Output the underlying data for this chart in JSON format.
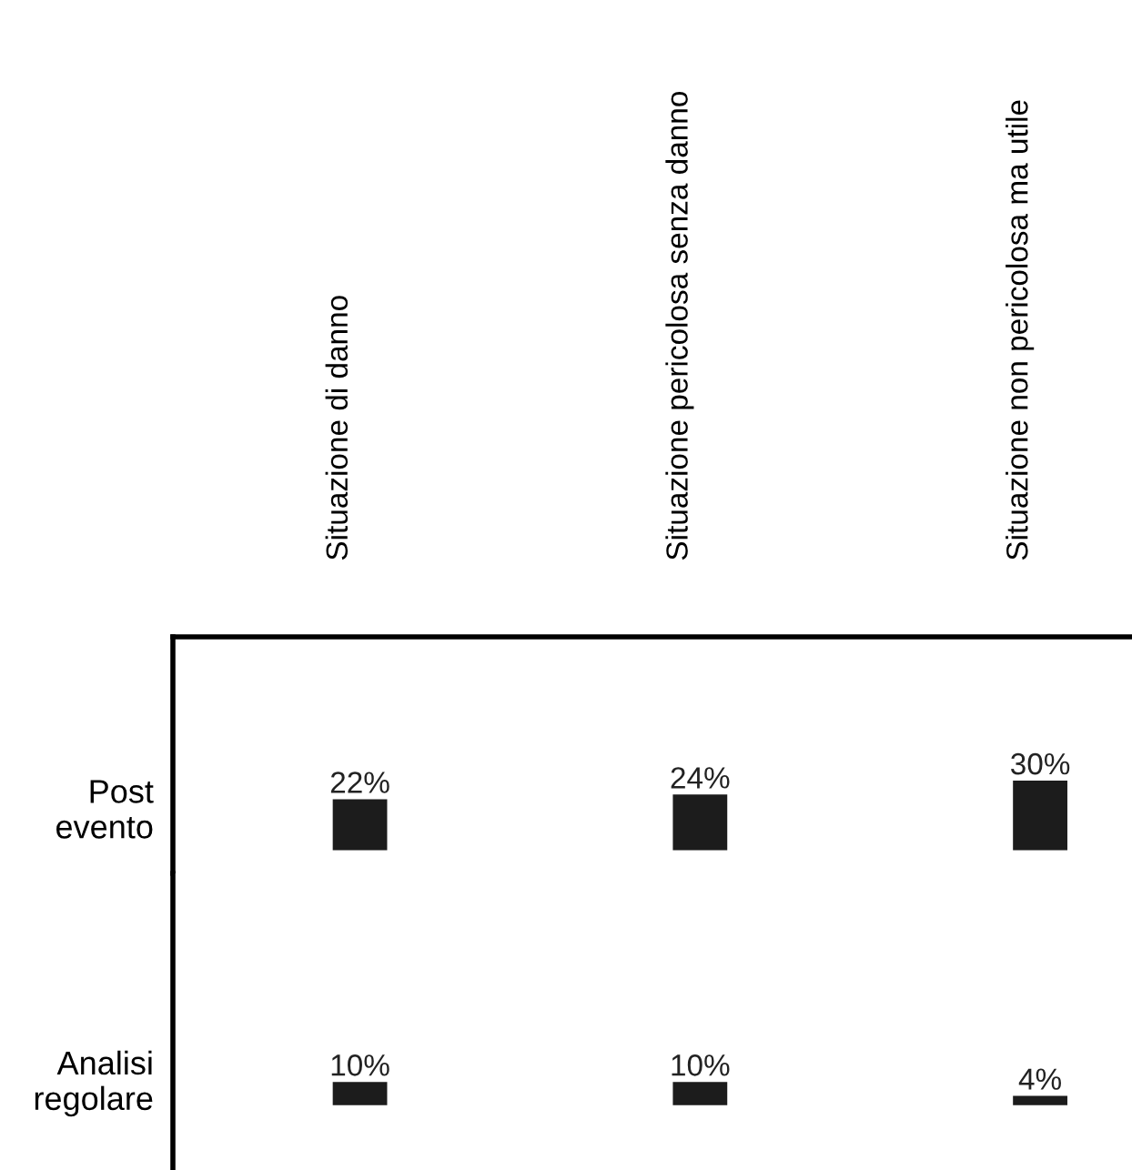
{
  "chart_data": [
    {
      "type": "bar",
      "ylabel": "Post\nevento",
      "categories": [
        "Situazione di danno",
        "Situazione pericolosa senza danno",
        "Situazione non pericolosa ma utile"
      ],
      "values": [
        22,
        24,
        30
      ],
      "value_labels": [
        "22%",
        "24%",
        "30%"
      ],
      "color": "#1c1c1c",
      "ylim": [
        -10,
        92
      ],
      "tick_labels": "x"
    },
    {
      "type": "bar",
      "ylabel": "Analisi\nregolare",
      "categories": [
        null,
        null,
        null
      ],
      "values": [
        10,
        10,
        4
      ],
      "value_labels": [
        "10%",
        "10%",
        "4%"
      ],
      "color": "#1c1c1c",
      "ylim": [
        -28,
        100
      ],
      "tick_labels": false
    }
  ]
}
